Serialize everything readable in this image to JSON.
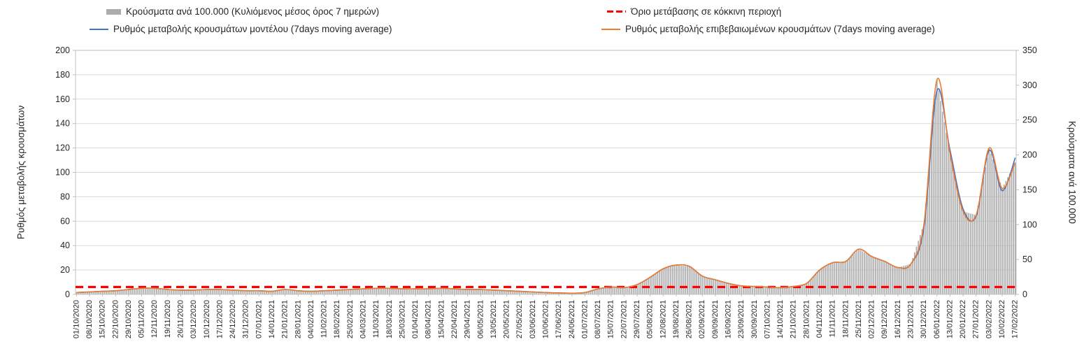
{
  "legend": {
    "items": [
      {
        "label": "Κρούσματα ανά 100.000 (Κυλιόμενος μέσος όρος 7 ημερών)",
        "swatch": "gray-bar",
        "color": "#acacac"
      },
      {
        "label": "Όριο μετάβασης σε κόκκινη περιοχή",
        "swatch": "red-dashed-line",
        "color": "#ff0000"
      },
      {
        "label": "Ρυθμός μεταβολής κρουσμάτων μοντέλου (7days moving average)",
        "swatch": "blue-line",
        "color": "#4472c4"
      },
      {
        "label": "Ρυθμός μεταβολής επιβεβαιωμένων κρουσμάτων (7days moving average)",
        "swatch": "orange-line",
        "color": "#ed7d31"
      }
    ]
  },
  "chart_data": {
    "type": "combo",
    "grid": true,
    "legend_position": "top",
    "background": "#ffffff",
    "axes": {
      "left": {
        "label": "Ρυθμός μεταβολής κρουσμάτων",
        "min": 0,
        "max": 200,
        "step": 20
      },
      "right": {
        "label": "Κρούσματα ανά 100.000",
        "min": 0,
        "max": 350,
        "step": 50
      }
    },
    "threshold": {
      "name": "Όριο μετάβασης σε κόκκινη περιοχή",
      "axis": "left",
      "value": 6,
      "color": "#ff0000",
      "style": "dashed"
    },
    "categories": [
      "01/10/2020",
      "08/10/2020",
      "15/10/2020",
      "22/10/2020",
      "29/10/2020",
      "05/11/2020",
      "12/11/2020",
      "19/11/2020",
      "26/11/2020",
      "03/12/2020",
      "10/12/2020",
      "17/12/2020",
      "24/12/2020",
      "31/12/2020",
      "07/01/2021",
      "14/01/2021",
      "21/01/2021",
      "28/01/2021",
      "04/02/2021",
      "11/02/2021",
      "18/02/2021",
      "25/02/2021",
      "04/03/2021",
      "11/03/2021",
      "18/03/2021",
      "25/03/2021",
      "01/04/2021",
      "08/04/2021",
      "15/04/2021",
      "22/04/2021",
      "29/04/2021",
      "06/05/2021",
      "13/05/2021",
      "20/05/2021",
      "27/05/2021",
      "03/06/2021",
      "10/06/2021",
      "17/06/2021",
      "24/06/2021",
      "01/07/2021",
      "08/07/2021",
      "15/07/2021",
      "22/07/2021",
      "29/07/2021",
      "05/08/2021",
      "12/08/2021",
      "19/08/2021",
      "26/08/2021",
      "02/09/2021",
      "09/09/2021",
      "16/09/2021",
      "23/09/2021",
      "30/09/2021",
      "07/10/2021",
      "14/10/2021",
      "21/10/2021",
      "28/10/2021",
      "04/11/2021",
      "11/11/2021",
      "18/11/2021",
      "25/11/2021",
      "02/12/2021",
      "09/12/2021",
      "16/12/2021",
      "23/12/2021",
      "30/12/2021",
      "06/01/2022",
      "13/01/2022",
      "20/01/2022",
      "27/01/2022",
      "03/02/2022",
      "10/02/2022",
      "17/02/2022"
    ],
    "series": [
      {
        "name": "Κρούσματα ανά 100.000 (Κυλιόμενος μέσος όρος 7 ημερών)",
        "type": "bar",
        "axis": "right",
        "color": "#acacac",
        "values": [
          2.6,
          3.5,
          4.4,
          5.3,
          7,
          8.8,
          8.8,
          7,
          6.1,
          6.1,
          7,
          7,
          6.1,
          5.3,
          5.3,
          4.4,
          7,
          5.3,
          4.4,
          5.3,
          6.1,
          7,
          7.9,
          8.8,
          8.8,
          7.9,
          7.9,
          7.9,
          8.8,
          7.9,
          7,
          7,
          6.1,
          5.3,
          4.4,
          3.5,
          2.6,
          2.1,
          1.8,
          2.6,
          7.9,
          10.5,
          9.6,
          14,
          24.5,
          36.8,
          42,
          40.3,
          26.3,
          21,
          15.8,
          12.3,
          11.4,
          10.5,
          9.6,
          11.4,
          15.8,
          35,
          45.5,
          47.3,
          64.8,
          54.3,
          47.3,
          38.5,
          43.8,
          101.5,
          308,
          201.3,
          119,
          113.8,
          210,
          152.3,
          189
        ]
      },
      {
        "name": "Ρυθμός μεταβολής κρουσμάτων μοντέλου (7days moving average)",
        "type": "line",
        "axis": "left",
        "color": "#4472c4",
        "values": [
          1.5,
          2,
          2.5,
          3,
          4,
          5,
          5,
          4,
          3.5,
          3.5,
          4,
          4,
          3.5,
          3,
          3,
          2.5,
          4,
          3,
          2.5,
          3,
          3.5,
          4,
          4.5,
          5,
          5,
          4.5,
          4.5,
          4.5,
          5,
          4.5,
          4,
          4,
          3.5,
          3,
          2.5,
          2,
          1.5,
          1.2,
          1,
          1.5,
          4.5,
          6,
          5.5,
          8,
          14,
          21,
          24,
          23,
          15,
          12,
          9,
          7,
          6.5,
          6,
          5.5,
          6.5,
          9,
          20,
          26,
          27,
          37,
          31,
          27,
          22,
          25,
          55,
          167,
          118,
          70,
          64,
          118,
          85,
          112
        ]
      },
      {
        "name": "Ρυθμός μεταβολής επιβεβαιωμένων κρουσμάτων (7days moving average)",
        "type": "line",
        "axis": "left",
        "color": "#ed7d31",
        "values": [
          1.5,
          2,
          2.5,
          3,
          4,
          5,
          5,
          4,
          3.5,
          3.5,
          4,
          4,
          3.5,
          3,
          3,
          2.5,
          4,
          3,
          2.5,
          3,
          3.5,
          4,
          4.5,
          5,
          5,
          4.5,
          4.5,
          4.5,
          5,
          4.5,
          4,
          4,
          3.5,
          3,
          2.5,
          2,
          1.5,
          1.2,
          1,
          1.5,
          4.5,
          6,
          5.5,
          8,
          14,
          21,
          24,
          23,
          15,
          12,
          9,
          7,
          6.5,
          6,
          5.5,
          6.5,
          9,
          20,
          26,
          27,
          37,
          31,
          27,
          22,
          25,
          58,
          176,
          115,
          68,
          65,
          120,
          87,
          108
        ]
      }
    ]
  }
}
